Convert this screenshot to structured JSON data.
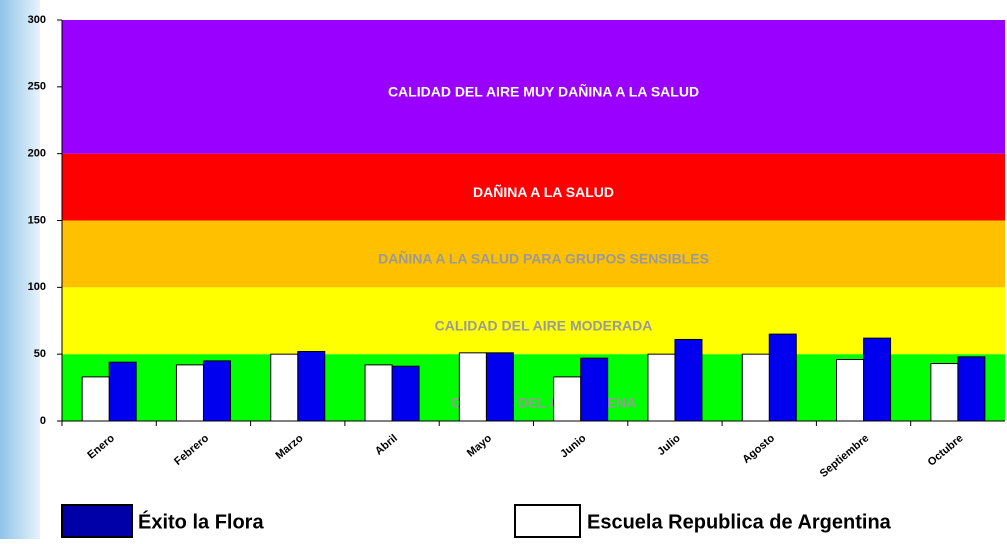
{
  "chart_data": {
    "type": "bar",
    "categories": [
      "Enero",
      "Febrero",
      "Marzo",
      "Abril",
      "Mayo",
      "Junio",
      "Julio",
      "Agosto",
      "Septiembre",
      "Octubre"
    ],
    "series": [
      {
        "name": "Éxito la Flora",
        "color": "#0000ee",
        "values": [
          44,
          45,
          52,
          41,
          51,
          47,
          61,
          65,
          62,
          48
        ]
      },
      {
        "name": "Escuela Republica de Argentina",
        "color": "#ffffff",
        "values": [
          33,
          42,
          50,
          42,
          51,
          33,
          50,
          50,
          46,
          43
        ]
      }
    ],
    "bands": [
      {
        "from": 0,
        "to": 50,
        "color": "#00ff00",
        "label": "CALIDAD DEL AIRE BUENA",
        "label_color": "#9a9a9a"
      },
      {
        "from": 50,
        "to": 100,
        "color": "#ffff00",
        "label": "CALIDAD DEL AIRE MODERADA",
        "label_color": "#9a9a9a"
      },
      {
        "from": 100,
        "to": 150,
        "color": "#ffc000",
        "label": "DAÑINA A LA SALUD PARA GRUPOS SENSIBLES",
        "label_color": "#9a9a9a"
      },
      {
        "from": 150,
        "to": 200,
        "color": "#ff0000",
        "label": "DAÑINA A LA SALUD",
        "label_color": "#ffffff"
      },
      {
        "from": 200,
        "to": 300,
        "color": "#9900ff",
        "label": "CALIDAD DEL AIRE MUY DAÑINA A LA SALUD",
        "label_color": "#ffffff"
      }
    ],
    "ylim": [
      0,
      300
    ],
    "yticks": [
      0,
      50,
      100,
      150,
      200,
      250,
      300
    ]
  }
}
